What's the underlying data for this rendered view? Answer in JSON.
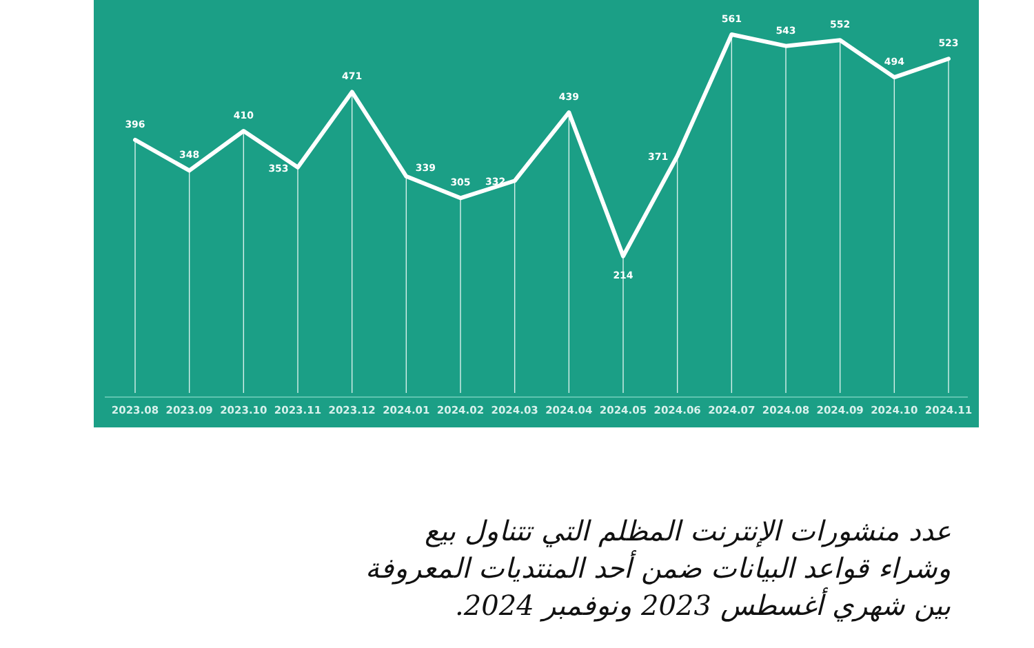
{
  "chart_data": {
    "type": "line",
    "categories": [
      "2023.08",
      "2023.09",
      "2023.10",
      "2023.11",
      "2023.12",
      "2024.01",
      "2024.02",
      "2024.03",
      "2024.04",
      "2024.05",
      "2024.06",
      "2024.07",
      "2024.08",
      "2024.09",
      "2024.10",
      "2024.11"
    ],
    "series": [
      {
        "color": "#ffffff",
        "values": [
          396,
          348,
          410,
          353,
          471,
          339,
          305,
          332,
          439,
          214,
          371,
          561,
          543,
          552,
          494,
          523
        ]
      }
    ],
    "data_labels": true,
    "marker": "none",
    "grid": "x",
    "annotations": [
      "عدد منشورات الإنترنت المظلم التي تتناول بيع وشراء قواعد البيانات ضمن أحد المنتديات المعروفة بين شهري أغسطس 2023 ونوفمبر 2024."
    ]
  }
}
